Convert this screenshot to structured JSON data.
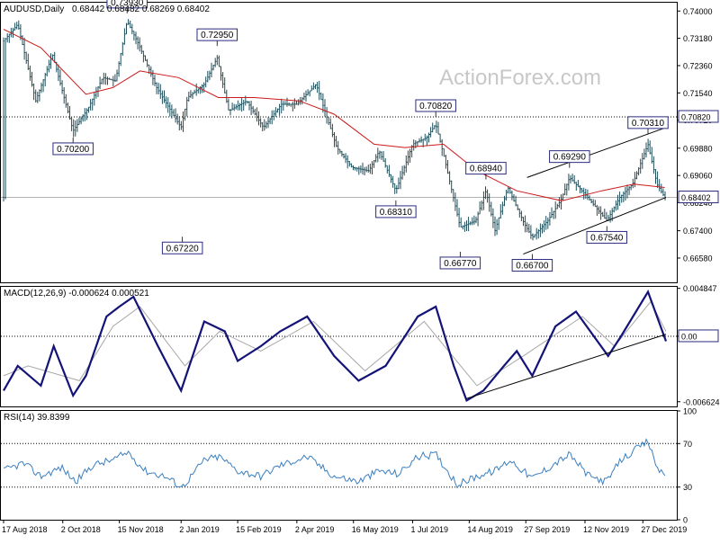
{
  "chart_data": [
    {
      "type": "candlestick",
      "title": "AUDUSD,Daily",
      "ohlc": "0.68442 0.68482 0.68269 0.68402",
      "watermark": "ActionForex.com",
      "ylim": [
        0.6585,
        0.7425
      ],
      "yticks": [
        "0.74000",
        "0.73180",
        "0.72360",
        "0.71540",
        "0.70720",
        "0.69880",
        "0.69060",
        "0.68240",
        "0.67400",
        "0.66580"
      ],
      "ytick_values": [
        0.74,
        0.7318,
        0.7236,
        0.7154,
        0.7072,
        0.6988,
        0.6906,
        0.6824,
        0.674,
        0.6658
      ],
      "last_price": "0.68402",
      "last_price_value": 0.68402,
      "hline_label": "0.70820",
      "hline_value": 0.7082,
      "callouts": [
        {
          "text": "0.73930",
          "value": 0.7393,
          "date": "2018-11-21"
        },
        {
          "text": "0.72950",
          "value": 0.7295,
          "date": "2019-01-30"
        },
        {
          "text": "0.70200",
          "value": 0.702,
          "date": "2018-10-10"
        },
        {
          "text": "0.67220",
          "value": 0.6722,
          "date": "2019-01-03"
        },
        {
          "text": "0.68310",
          "value": 0.6831,
          "date": "2019-06-18"
        },
        {
          "text": "0.70820",
          "value": 0.7082,
          "date": "2019-07-19"
        },
        {
          "text": "0.66770",
          "value": 0.6677,
          "date": "2019-08-07"
        },
        {
          "text": "0.68940",
          "value": 0.6894,
          "date": "2019-08-27"
        },
        {
          "text": "0.66700",
          "value": 0.667,
          "date": "2019-10-02"
        },
        {
          "text": "0.69290",
          "value": 0.6929,
          "date": "2019-10-31"
        },
        {
          "text": "0.67540",
          "value": 0.6754,
          "date": "2019-11-29"
        },
        {
          "text": "0.70310",
          "value": 0.7031,
          "date": "2019-12-31"
        }
      ],
      "price_path": [
        [
          "2018-08-17",
          0.731
        ],
        [
          "2018-08-28",
          0.736
        ],
        [
          "2018-09-11",
          0.713
        ],
        [
          "2018-09-24",
          0.727
        ],
        [
          "2018-10-10",
          0.704
        ],
        [
          "2018-10-22",
          0.711
        ],
        [
          "2018-11-02",
          0.72
        ],
        [
          "2018-11-12",
          0.719
        ],
        [
          "2018-11-21",
          0.737
        ],
        [
          "2018-11-30",
          0.73
        ],
        [
          "2018-12-14",
          0.717
        ],
        [
          "2019-01-02",
          0.705
        ],
        [
          "2019-01-07",
          0.714
        ],
        [
          "2019-01-20",
          0.718
        ],
        [
          "2019-01-30",
          0.726
        ],
        [
          "2019-02-08",
          0.71
        ],
        [
          "2019-02-22",
          0.713
        ],
        [
          "2019-03-07",
          0.705
        ],
        [
          "2019-03-21",
          0.712
        ],
        [
          "2019-04-02",
          0.712
        ],
        [
          "2019-04-17",
          0.718
        ],
        [
          "2019-05-03",
          0.699
        ],
        [
          "2019-05-15",
          0.693
        ],
        [
          "2019-05-28",
          0.692
        ],
        [
          "2019-06-05",
          0.698
        ],
        [
          "2019-06-18",
          0.686
        ],
        [
          "2019-07-01",
          0.7
        ],
        [
          "2019-07-12",
          0.702
        ],
        [
          "2019-07-19",
          0.706
        ],
        [
          "2019-07-25",
          0.697
        ],
        [
          "2019-08-07",
          0.675
        ],
        [
          "2019-08-19",
          0.677
        ],
        [
          "2019-08-27",
          0.686
        ],
        [
          "2019-09-03",
          0.674
        ],
        [
          "2019-09-13",
          0.687
        ],
        [
          "2019-09-26",
          0.676
        ],
        [
          "2019-10-02",
          0.672
        ],
        [
          "2019-10-14",
          0.677
        ],
        [
          "2019-10-24",
          0.683
        ],
        [
          "2019-10-31",
          0.69
        ],
        [
          "2019-11-12",
          0.685
        ],
        [
          "2019-11-29",
          0.677
        ],
        [
          "2019-12-09",
          0.684
        ],
        [
          "2019-12-19",
          0.688
        ],
        [
          "2019-12-31",
          0.7
        ],
        [
          "2020-01-07",
          0.688
        ],
        [
          "2020-01-13",
          0.684
        ]
      ],
      "sma": [
        [
          "2018-08-17",
          0.7345
        ],
        [
          "2018-09-15",
          0.729
        ],
        [
          "2018-10-20",
          0.715
        ],
        [
          "2018-11-10",
          0.717
        ],
        [
          "2018-12-01",
          0.722
        ],
        [
          "2018-12-31",
          0.72
        ],
        [
          "2019-01-31",
          0.714
        ],
        [
          "2019-02-28",
          0.714
        ],
        [
          "2019-04-04",
          0.713
        ],
        [
          "2019-05-01",
          0.709
        ],
        [
          "2019-06-01",
          0.7
        ],
        [
          "2019-06-25",
          0.699
        ],
        [
          "2019-07-25",
          0.7
        ],
        [
          "2019-08-20",
          0.692
        ],
        [
          "2019-09-20",
          0.686
        ],
        [
          "2019-10-25",
          0.683
        ],
        [
          "2019-11-25",
          0.686
        ],
        [
          "2019-12-20",
          0.688
        ],
        [
          "2020-01-13",
          0.687
        ]
      ],
      "trendlines": [
        [
          [
            "2019-09-25",
            0.667
          ],
          [
            "2020-01-14",
            0.684
          ]
        ],
        [
          [
            "2019-09-28",
            0.69
          ],
          [
            "2020-01-14",
            0.705
          ]
        ]
      ]
    },
    {
      "type": "line",
      "title": "MACD(12,26,9) -0.000624 0.000521",
      "ylim": [
        -0.0071,
        0.005
      ],
      "yticks": [
        "0.004847",
        "0.00",
        "-0.006624"
      ],
      "ytick_values": [
        0.004847,
        0.0,
        -0.006624
      ],
      "last_label": "0.00",
      "series": [
        {
          "name": "MACD",
          "values": [
            [
              "2018-08-17",
              -0.0055
            ],
            [
              "2018-08-28",
              -0.003
            ],
            [
              "2018-09-15",
              -0.005
            ],
            [
              "2018-09-25",
              -0.001
            ],
            [
              "2018-10-10",
              -0.006
            ],
            [
              "2018-10-20",
              -0.004
            ],
            [
              "2018-11-05",
              0.002
            ],
            [
              "2018-11-15",
              0.003
            ],
            [
              "2018-11-26",
              0.004
            ],
            [
              "2018-12-15",
              -0.001
            ],
            [
              "2019-01-02",
              -0.0055
            ],
            [
              "2019-01-20",
              0.0015
            ],
            [
              "2019-02-05",
              0.0005
            ],
            [
              "2019-02-15",
              -0.0025
            ],
            [
              "2019-03-05",
              -0.001
            ],
            [
              "2019-03-20",
              0.0005
            ],
            [
              "2019-04-10",
              0.002
            ],
            [
              "2019-05-01",
              -0.002
            ],
            [
              "2019-05-20",
              -0.0045
            ],
            [
              "2019-06-10",
              -0.003
            ],
            [
              "2019-07-05",
              0.002
            ],
            [
              "2019-07-19",
              0.003
            ],
            [
              "2019-08-02",
              -0.003
            ],
            [
              "2019-08-12",
              -0.0065
            ],
            [
              "2019-08-25",
              -0.0055
            ],
            [
              "2019-09-10",
              -0.003
            ],
            [
              "2019-09-20",
              -0.0015
            ],
            [
              "2019-10-02",
              -0.004
            ],
            [
              "2019-10-20",
              0.001
            ],
            [
              "2019-11-05",
              0.0025
            ],
            [
              "2019-11-30",
              -0.002
            ],
            [
              "2019-12-10",
              0.0
            ],
            [
              "2019-12-31",
              0.0045
            ],
            [
              "2020-01-14",
              -0.0005
            ]
          ]
        },
        {
          "name": "Signal",
          "values": [
            [
              "2018-08-17",
              -0.004
            ],
            [
              "2018-09-05",
              -0.003
            ],
            [
              "2018-10-15",
              -0.0045
            ],
            [
              "2018-11-10",
              0.001
            ],
            [
              "2018-12-01",
              0.003
            ],
            [
              "2019-01-05",
              -0.003
            ],
            [
              "2019-02-01",
              0.0005
            ],
            [
              "2019-03-05",
              -0.0015
            ],
            [
              "2019-04-15",
              0.0015
            ],
            [
              "2019-05-25",
              -0.0035
            ],
            [
              "2019-07-10",
              0.0015
            ],
            [
              "2019-08-20",
              -0.005
            ],
            [
              "2019-09-25",
              -0.002
            ],
            [
              "2019-11-10",
              0.002
            ],
            [
              "2019-12-05",
              -0.001
            ],
            [
              "2020-01-02",
              0.0035
            ],
            [
              "2020-01-14",
              0.0005
            ]
          ]
        }
      ],
      "trendline": [
        [
          "2019-08-12",
          -0.0063
        ],
        [
          "2020-01-14",
          0.0002
        ]
      ]
    },
    {
      "type": "line",
      "title": "RSI(14) 39.8399",
      "ylim": [
        0,
        100
      ],
      "yticks": [
        "100",
        "70",
        "30",
        "0"
      ],
      "ytick_values": [
        100,
        70,
        30,
        0
      ],
      "levels": [
        70,
        30
      ],
      "xticks": [
        "17 Aug 2018",
        "2 Oct 2018",
        "15 Nov 2018",
        "2 Jan 2019",
        "15 Feb 2019",
        "2 Apr 2019",
        "16 May 2019",
        "1 Jul 2019",
        "14 Aug 2019",
        "27 Sep 2019",
        "12 Nov 2019",
        "27 Dec 2019"
      ],
      "xtick_dates": [
        "2018-08-17",
        "2018-10-02",
        "2018-11-15",
        "2019-01-02",
        "2019-02-15",
        "2019-04-02",
        "2019-05-16",
        "2019-07-01",
        "2019-08-14",
        "2019-09-27",
        "2019-11-12",
        "2019-12-27"
      ],
      "series": [
        {
          "name": "RSI",
          "values": [
            [
              "2018-08-17",
              45
            ],
            [
              "2018-09-01",
              52
            ],
            [
              "2018-09-15",
              40
            ],
            [
              "2018-10-01",
              48
            ],
            [
              "2018-10-12",
              35
            ],
            [
              "2018-10-25",
              50
            ],
            [
              "2018-11-10",
              55
            ],
            [
              "2018-11-22",
              62
            ],
            [
              "2018-12-05",
              45
            ],
            [
              "2018-12-20",
              40
            ],
            [
              "2019-01-03",
              30
            ],
            [
              "2019-01-20",
              55
            ],
            [
              "2019-02-01",
              58
            ],
            [
              "2019-02-15",
              45
            ],
            [
              "2019-03-05",
              40
            ],
            [
              "2019-03-20",
              50
            ],
            [
              "2019-04-10",
              58
            ],
            [
              "2019-05-01",
              40
            ],
            [
              "2019-05-20",
              35
            ],
            [
              "2019-06-05",
              45
            ],
            [
              "2019-06-20",
              42
            ],
            [
              "2019-07-05",
              58
            ],
            [
              "2019-07-19",
              60
            ],
            [
              "2019-08-05",
              32
            ],
            [
              "2019-08-20",
              40
            ],
            [
              "2019-09-03",
              45
            ],
            [
              "2019-09-15",
              55
            ],
            [
              "2019-10-02",
              38
            ],
            [
              "2019-10-20",
              52
            ],
            [
              "2019-10-31",
              60
            ],
            [
              "2019-11-15",
              40
            ],
            [
              "2019-11-29",
              35
            ],
            [
              "2019-12-10",
              55
            ],
            [
              "2019-12-31",
              72
            ],
            [
              "2020-01-07",
              48
            ],
            [
              "2020-01-14",
              39.84
            ]
          ]
        }
      ]
    }
  ]
}
